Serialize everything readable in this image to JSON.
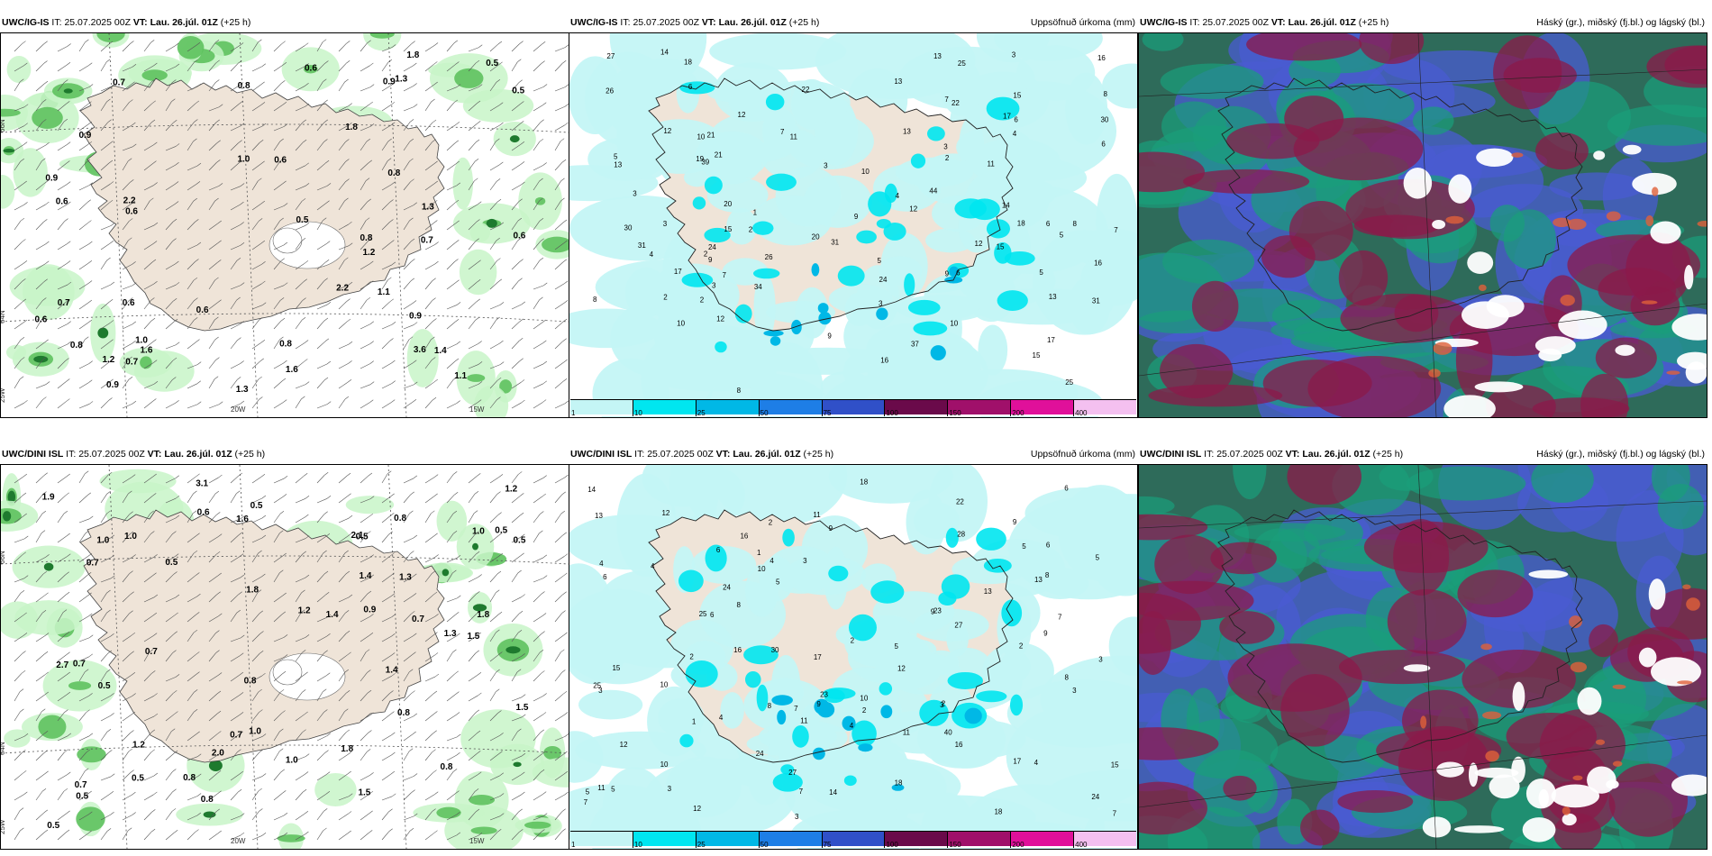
{
  "colors": {
    "land": "#efe4d8",
    "precip_light": "#c4f5f5",
    "precip_mid": "#00e6f0",
    "precip_high": "#00b8e6",
    "cloud_high": "#8b1a4a",
    "cloud_mid": "#1a9e7a",
    "cloud_low": "#4a5bd1",
    "green_fog_1": "#c8f5c8",
    "green_fog_2": "#5ec25e",
    "green_fog_3": "#1e7a2e"
  },
  "rows": [
    {
      "panels": [
        {
          "run_model": "UWC/IG-IS",
          "it_label": "IT:",
          "it_value": "25.07.2025 00Z",
          "vt_label": "VT:",
          "vt_value": "Lau. 26.júl. 01Z",
          "lead": "(+25 h)",
          "title": "",
          "axis": {
            "lat66": "66N",
            "lat64": "64N",
            "lon25": "25W",
            "lon20": "20W",
            "lon15": "15W"
          },
          "labels": [
            "0.5",
            "1.1",
            "0.7",
            "0.5",
            "0.8",
            "1.0",
            "0.9",
            "0.6",
            "3.6",
            "1.8",
            "0.8",
            "0.6",
            "0.6",
            "0.7",
            "0.9",
            "0.9",
            "1.8",
            "0.9",
            "1.6",
            "0.6",
            "1.1",
            "1.3",
            "1.4",
            "0.9",
            "0.6",
            "1.0",
            "1.2",
            "0.6",
            "2.2",
            "0.7",
            "1.3",
            "0.6",
            "1.6",
            "1.2",
            "0.8",
            "0.6",
            "1.3",
            "0.8",
            "2.2",
            "0.5",
            "0.7",
            "0.8"
          ]
        },
        {
          "run_model": "UWC/IG-IS",
          "it_label": "IT:",
          "it_value": "25.07.2025 00Z",
          "vt_label": "VT:",
          "vt_value": "Lau. 26.júl. 01Z",
          "lead": "(+25 h)",
          "title": "Uppsöfnuð úrkoma (mm)",
          "labels": [
            "3",
            "8",
            "4",
            "6",
            "12",
            "15",
            "9",
            "7",
            "13",
            "3",
            "5",
            "2",
            "3",
            "17",
            "21",
            "25",
            "24",
            "39",
            "30",
            "27",
            "22",
            "21",
            "16",
            "14",
            "18",
            "13",
            "11",
            "5",
            "3",
            "4",
            "8",
            "2",
            "16",
            "15",
            "3",
            "10",
            "13",
            "15",
            "9",
            "7",
            "2",
            "22",
            "17",
            "12",
            "13",
            "6",
            "8",
            "10",
            "12",
            "5",
            "26",
            "44",
            "31",
            "17",
            "15",
            "10",
            "37",
            "31",
            "34",
            "25",
            "20",
            "24",
            "30",
            "16",
            "12",
            "9",
            "7",
            "6",
            "11",
            "4",
            "8",
            "6",
            "2",
            "3",
            "2",
            "1",
            "7",
            "14",
            "12",
            "10",
            "9",
            "6",
            "3",
            "5",
            "13",
            "19",
            "31",
            "20",
            "26",
            "18"
          ],
          "colorbar": [
            "1",
            "10",
            "25",
            "50",
            "75",
            "100",
            "150",
            "200",
            "400"
          ]
        },
        {
          "run_model": "UWC/IG-IS",
          "it_label": "IT:",
          "it_value": "25.07.2025 00Z",
          "vt_label": "VT:",
          "vt_value": "Lau. 26.júl. 01Z",
          "lead": "(+25 h)",
          "title": "Háský (gr.), miðský (fj.bl.) og lágský (bl.)"
        }
      ]
    },
    {
      "panels": [
        {
          "run_model": "UWC/DINI ISL",
          "it_label": "IT:",
          "it_value": "25.07.2025 00Z",
          "vt_label": "VT:",
          "vt_value": "Lau. 26.júl. 01Z",
          "lead": "(+25 h)",
          "title": "",
          "axis": {
            "lat66": "66N",
            "lat64": "64N",
            "lon25": "25W",
            "lon20": "20W",
            "lon15": "15W"
          },
          "labels": [
            "0.5",
            "1.4",
            "0.5",
            "0.7",
            "0.5",
            "0.5",
            "1.0",
            "0.8",
            "0.8",
            "0.8",
            "0.5",
            "1.5",
            "1.9",
            "3.1",
            "2.7",
            "1.8",
            "1.0",
            "0.7",
            "0.5",
            "0.7",
            "0.8",
            "1.0",
            "1.8",
            "1.8",
            "1.4",
            "2.0",
            "0.5",
            "1.3",
            "1.5",
            "1.0",
            "0.5",
            "1.3",
            "2.1",
            "0.9",
            "1.2",
            "0.7",
            "0.7",
            "1.0",
            "0.5",
            "0.6",
            "1.2",
            "0.8",
            "1.4",
            "1.5",
            "0.7",
            "1.6",
            "1.2",
            "0.8"
          ]
        },
        {
          "run_model": "UWC/DINI ISL",
          "it_label": "IT:",
          "it_value": "25.07.2025 00Z",
          "vt_label": "VT:",
          "vt_value": "Lau. 26.júl. 01Z",
          "lead": "(+25 h)",
          "title": "Uppsöfnuð úrkoma (mm)",
          "labels": [
            "7",
            "5",
            "3",
            "4",
            "6",
            "2",
            "8",
            "9",
            "5",
            "3",
            "11",
            "13",
            "23",
            "16",
            "15",
            "13",
            "8",
            "4",
            "2",
            "24",
            "18",
            "27",
            "23",
            "22",
            "15",
            "12",
            "9",
            "3",
            "7",
            "6",
            "4",
            "2",
            "1",
            "5",
            "9",
            "7",
            "3",
            "13",
            "17",
            "12",
            "10",
            "8",
            "6",
            "4",
            "3",
            "5",
            "11",
            "16",
            "12",
            "17",
            "10",
            "9",
            "5",
            "4",
            "2",
            "25",
            "27",
            "14",
            "24",
            "28",
            "30",
            "18",
            "16",
            "40",
            "24",
            "25",
            "18",
            "14",
            "7",
            "3",
            "6",
            "5",
            "11",
            "2",
            "4",
            "7",
            "3",
            "1",
            "2",
            "12",
            "10",
            "9",
            "8",
            "11",
            "10",
            "6"
          ],
          "colorbar": [
            "1",
            "10",
            "25",
            "50",
            "75",
            "100",
            "150",
            "200",
            "400"
          ]
        },
        {
          "run_model": "UWC/DINI ISL",
          "it_label": "IT:",
          "it_value": "25.07.2025 00Z",
          "vt_label": "VT:",
          "vt_value": "Lau. 26.júl. 01Z",
          "lead": "(+25 h)",
          "title": "Háský (gr.), miðský (fj.bl.) og lágský (bl.)"
        }
      ]
    }
  ]
}
